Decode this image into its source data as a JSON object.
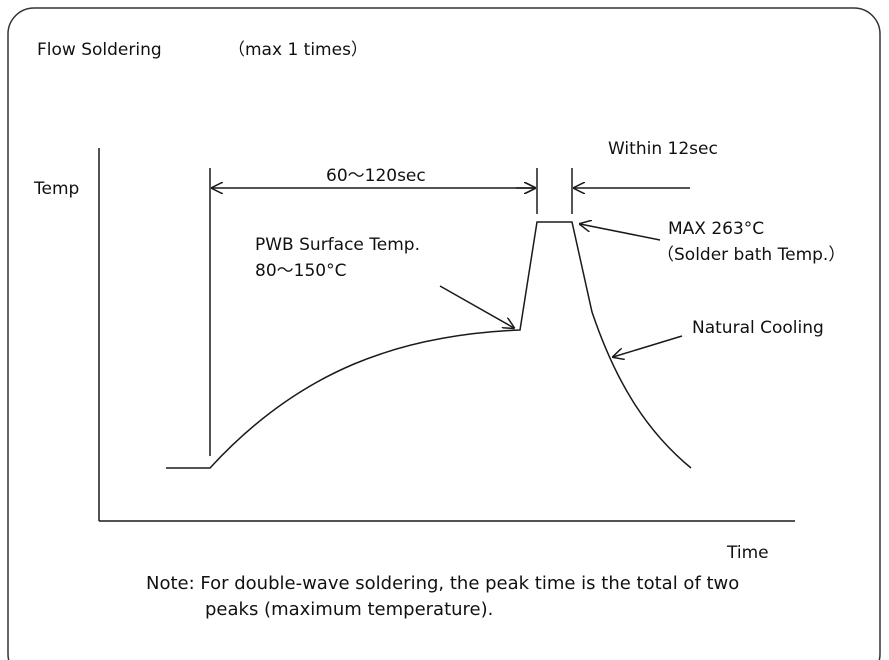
{
  "title": "Flow Soldering",
  "title_note": "（max 1 times）",
  "axis": {
    "y_label": "Temp",
    "x_label": "Time"
  },
  "annotations": {
    "preheat_duration": "60～120sec",
    "peak_duration": "Within  12sec",
    "pwb_line1": "PWB Surface Temp.",
    "pwb_line2": "80～150°C",
    "max_line1": "MAX 263°C",
    "max_line2": "（Solder bath Temp.）",
    "cooling": "Natural Cooling"
  },
  "note": {
    "line1": "Note: For double-wave soldering, the peak time is the total of two",
    "line2": "peaks (maximum temperature)."
  },
  "colors": {
    "line": "#1a1a1a",
    "border": "#333333",
    "background": "#ffffff"
  }
}
